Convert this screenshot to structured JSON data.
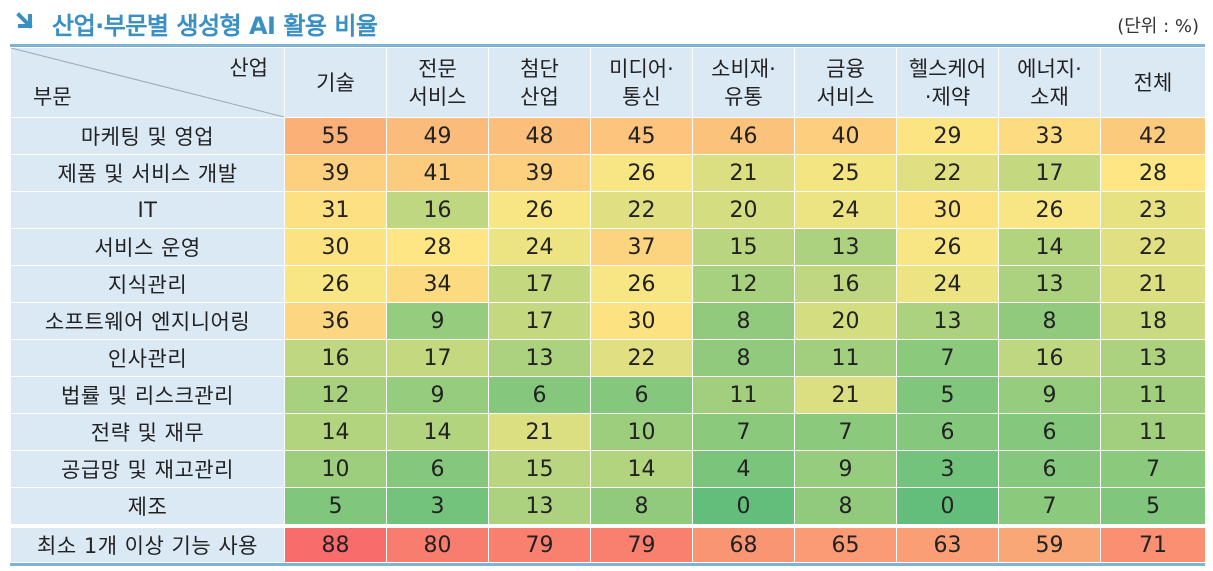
{
  "title": "산업·부문별 생성형 AI 활용 비율",
  "unit": "(단위 : %)",
  "chart_data": {
    "type": "heatmap",
    "corner": {
      "column_axis": "산업",
      "row_axis": "부문"
    },
    "columns": [
      [
        "기술"
      ],
      [
        "전문",
        "서비스"
      ],
      [
        "첨단",
        "산업"
      ],
      [
        "미디어·",
        "통신"
      ],
      [
        "소비재·",
        "유통"
      ],
      [
        "금융",
        "서비스"
      ],
      [
        "헬스케어",
        "·제약"
      ],
      [
        "에너지·",
        "소재"
      ],
      [
        "전체"
      ]
    ],
    "rows": [
      {
        "label": "마케팅 및 영업",
        "values": [
          55,
          49,
          48,
          45,
          46,
          40,
          29,
          33,
          42
        ]
      },
      {
        "label": "제품 및 서비스 개발",
        "values": [
          39,
          41,
          39,
          26,
          21,
          25,
          22,
          17,
          28
        ]
      },
      {
        "label": "IT",
        "values": [
          31,
          16,
          26,
          22,
          20,
          24,
          30,
          26,
          23
        ]
      },
      {
        "label": "서비스 운영",
        "values": [
          30,
          28,
          24,
          37,
          15,
          13,
          26,
          14,
          22
        ]
      },
      {
        "label": "지식관리",
        "values": [
          26,
          34,
          17,
          26,
          12,
          16,
          24,
          13,
          21
        ]
      },
      {
        "label": "소프트웨어 엔지니어링",
        "values": [
          36,
          9,
          17,
          30,
          8,
          20,
          13,
          8,
          18
        ]
      },
      {
        "label": "인사관리",
        "values": [
          16,
          17,
          13,
          22,
          8,
          11,
          7,
          16,
          13
        ]
      },
      {
        "label": "법률 및 리스크관리",
        "values": [
          12,
          9,
          6,
          6,
          11,
          21,
          5,
          9,
          11
        ]
      },
      {
        "label": "전략 및 재무",
        "values": [
          14,
          14,
          21,
          10,
          7,
          7,
          6,
          6,
          11
        ]
      },
      {
        "label": "공급망 및 재고관리",
        "values": [
          10,
          6,
          15,
          14,
          4,
          9,
          3,
          6,
          7
        ]
      },
      {
        "label": "제조",
        "values": [
          5,
          3,
          13,
          8,
          0,
          8,
          0,
          7,
          5
        ]
      },
      {
        "label": "최소 1개 이상 기능 사용",
        "values": [
          88,
          80,
          79,
          79,
          68,
          65,
          63,
          59,
          71
        ],
        "total": true
      }
    ],
    "color_scale": {
      "low": "#63be7b",
      "mid": "#fde883",
      "high": "#f8696b",
      "range": [
        0,
        90
      ]
    }
  }
}
